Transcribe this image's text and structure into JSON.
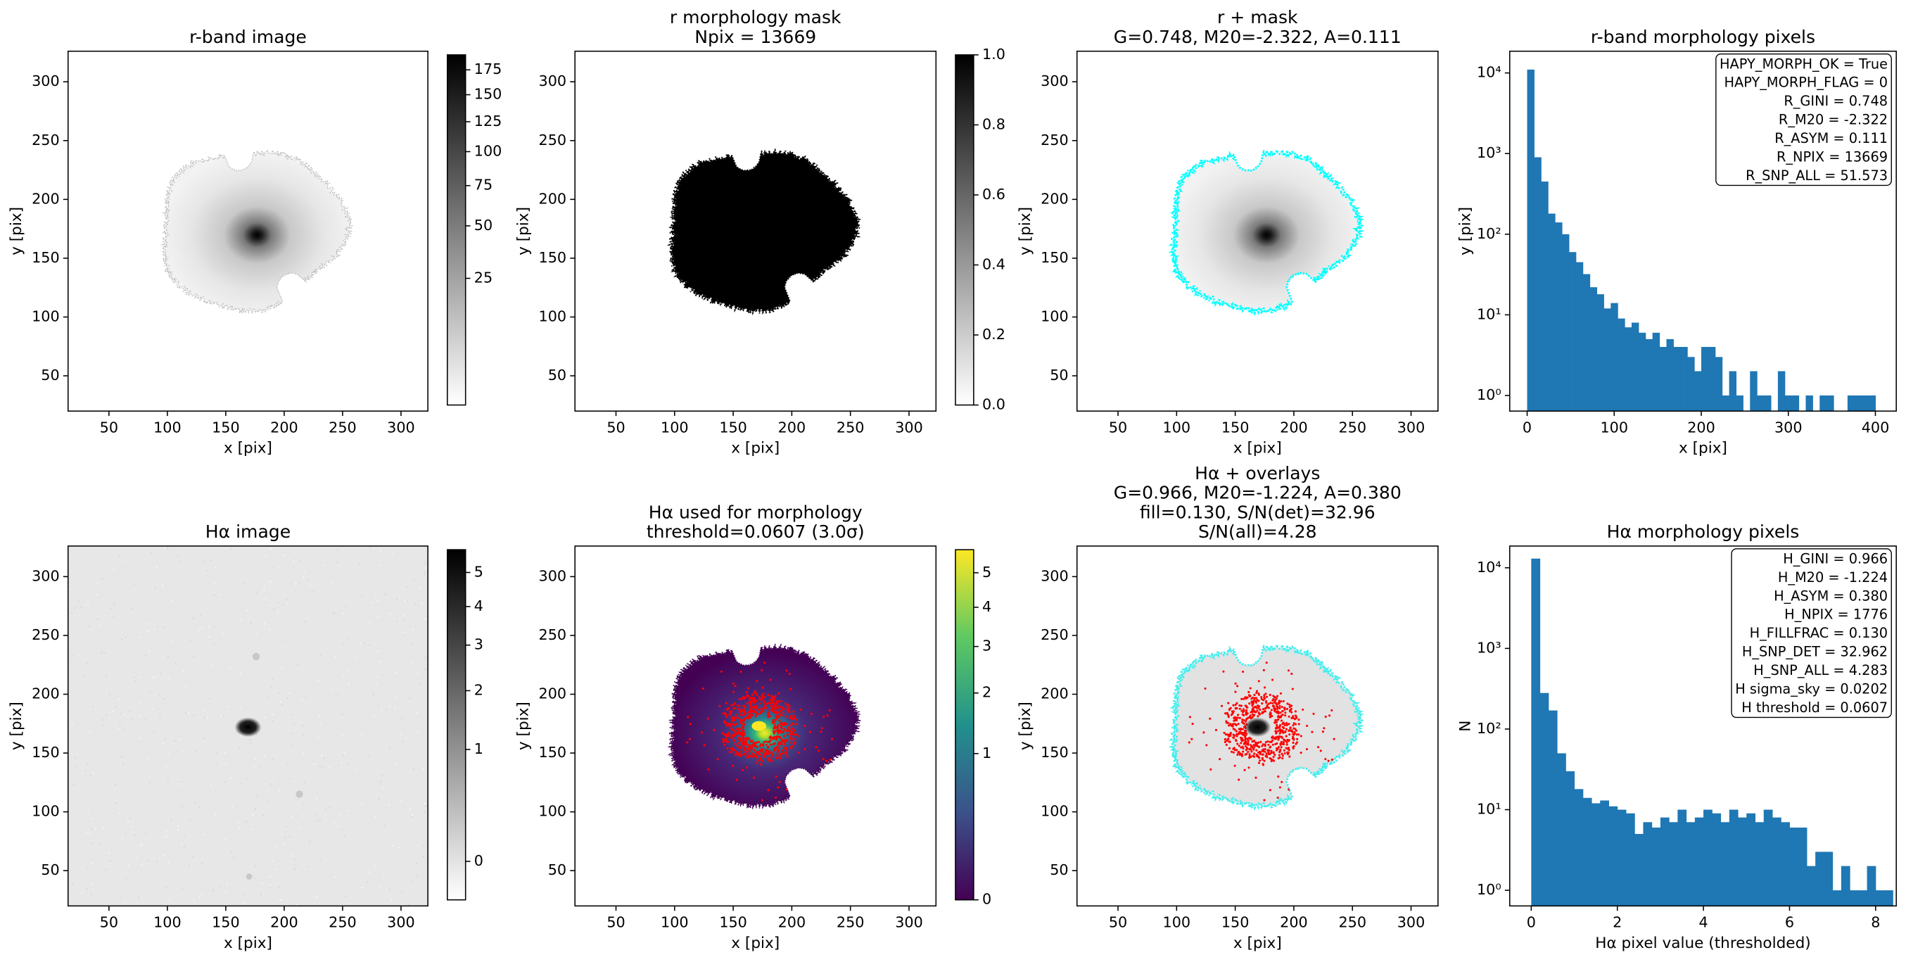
{
  "chart_data": [
    {
      "type": "image",
      "title": [
        "r-band image"
      ],
      "xlabel": "x [pix]",
      "ylabel": "y [pix]",
      "xlim": [
        15,
        323
      ],
      "ylim": [
        20,
        326
      ],
      "xticks": [
        50,
        100,
        150,
        200,
        250,
        300
      ],
      "yticks": [
        50,
        100,
        150,
        200,
        250,
        300
      ],
      "cmap": "gray_r",
      "colorbar": {
        "clim": [
          0,
          191
        ],
        "scale": "sqrt",
        "ticks": [
          25,
          50,
          75,
          100,
          125,
          150,
          175
        ]
      }
    },
    {
      "type": "image",
      "title": [
        "r morphology mask",
        "Npix = 13669"
      ],
      "xlabel": "x [pix]",
      "ylabel": "y [pix]",
      "xlim": [
        15,
        323
      ],
      "ylim": [
        20,
        326
      ],
      "xticks": [
        50,
        100,
        150,
        200,
        250,
        300
      ],
      "yticks": [
        50,
        100,
        150,
        200,
        250,
        300
      ],
      "cmap": "gray_r",
      "colorbar": {
        "clim": [
          0,
          1
        ],
        "scale": "linear",
        "ticks": [
          {
            "value": 0,
            "label": "0.0"
          },
          0.2,
          0.4,
          0.6,
          0.8,
          {
            "value": 1,
            "label": "1.0"
          }
        ]
      }
    },
    {
      "type": "image",
      "title": [
        "r + mask",
        "G=0.748, M20=-2.322, A=0.111"
      ],
      "xlabel": "x [pix]",
      "ylabel": "y [pix]",
      "xlim": [
        15,
        323
      ],
      "ylim": [
        20,
        326
      ],
      "xticks": [
        50,
        100,
        150,
        200,
        250,
        300
      ],
      "yticks": [
        50,
        100,
        150,
        200,
        250,
        300
      ],
      "cmap": "gray_r"
    },
    {
      "type": "histogram",
      "title": [
        "r-band morphology pixels"
      ],
      "xlabel": "x [pix]",
      "ylabel": "y [pix]",
      "bins": [
        0,
        8,
        16,
        24,
        32,
        40,
        48,
        56,
        64,
        72,
        80,
        88,
        96,
        104,
        112,
        120,
        128,
        136,
        144,
        152,
        160,
        168,
        176,
        184,
        192,
        200,
        208,
        216,
        224,
        232,
        240,
        248,
        256,
        264,
        272,
        280,
        288,
        296,
        304,
        312,
        320,
        328,
        336,
        344,
        352,
        360,
        368,
        376,
        384,
        392,
        400
      ],
      "values": [
        11000,
        900,
        450,
        180,
        140,
        100,
        60,
        45,
        32,
        22,
        18,
        12,
        14,
        9,
        7,
        8,
        6,
        5,
        6,
        4,
        5,
        4,
        4,
        3,
        2,
        4,
        4,
        3,
        1,
        2,
        1,
        0,
        2,
        1,
        1,
        0,
        2,
        1,
        1,
        0,
        1,
        0,
        1,
        1,
        0,
        0,
        1,
        1,
        1,
        1
      ],
      "color": "#1f77b4",
      "yscale": "log",
      "xlim": [
        -20,
        424
      ],
      "ylim": [
        0.64,
        18600
      ],
      "xticks": [
        0,
        100,
        200,
        300,
        400
      ],
      "yticks": [
        {
          "value": 1,
          "label": "10⁰"
        },
        {
          "value": 10,
          "label": "10¹"
        },
        {
          "value": 100,
          "label": "10²"
        },
        {
          "value": 1000,
          "label": "10³"
        },
        {
          "value": 10000,
          "label": "10⁴"
        }
      ],
      "annotation": [
        "HAPY_MORPH_OK = True",
        "HAPY_MORPH_FLAG = 0",
        "R_GINI = 0.748",
        "R_M20 = -2.322",
        "R_ASYM = 0.111",
        "R_NPIX = 13669",
        "R_SNP_ALL = 51.573"
      ]
    },
    {
      "type": "image",
      "title": [
        "Hα image"
      ],
      "xlabel": "x [pix]",
      "ylabel": "y [pix]",
      "xlim": [
        15,
        323
      ],
      "ylim": [
        20,
        326
      ],
      "xticks": [
        50,
        100,
        150,
        200,
        250,
        300
      ],
      "yticks": [
        50,
        100,
        150,
        200,
        250,
        300
      ],
      "cmap": "gray_r",
      "colorbar": {
        "clim": [
          -0.07,
          5.73
        ],
        "scale": "sqrt",
        "ticks": [
          0,
          1,
          2,
          3,
          4,
          5
        ]
      }
    },
    {
      "type": "image",
      "title": [
        "Hα used for morphology",
        "threshold=0.0607 (3.0σ)"
      ],
      "xlabel": "x [pix]",
      "ylabel": "y [pix]",
      "xlim": [
        15,
        323
      ],
      "ylim": [
        20,
        326
      ],
      "xticks": [
        50,
        100,
        150,
        200,
        250,
        300
      ],
      "yticks": [
        50,
        100,
        150,
        200,
        250,
        300
      ],
      "cmap": "viridis",
      "colorbar": {
        "clim": [
          0,
          5.73
        ],
        "scale": "sqrt",
        "ticks": [
          0,
          1,
          2,
          3,
          4,
          5
        ]
      }
    },
    {
      "type": "image",
      "title": [
        "Hα + overlays",
        "G=0.966, M20=-1.224, A=0.380",
        "fill=0.130, S/N(det)=32.96",
        "S/N(all)=4.28"
      ],
      "xlabel": "x [pix]",
      "ylabel": "y [pix]",
      "xlim": [
        15,
        323
      ],
      "ylim": [
        20,
        326
      ],
      "xticks": [
        50,
        100,
        150,
        200,
        250,
        300
      ],
      "yticks": [
        50,
        100,
        150,
        200,
        250,
        300
      ],
      "cmap": "gray_r"
    },
    {
      "type": "histogram",
      "title": [
        "Hα morphology pixels"
      ],
      "xlabel": "Hα pixel value (thresholded)",
      "ylabel": "N",
      "bins": [
        0,
        0.2,
        0.4,
        0.6,
        0.8,
        1,
        1.2,
        1.4,
        1.6,
        1.8,
        2,
        2.2,
        2.4,
        2.6,
        2.8,
        3,
        3.2,
        3.4,
        3.6,
        3.8,
        4,
        4.2,
        4.4,
        4.6,
        4.8,
        5,
        5.2,
        5.4,
        5.6,
        5.8,
        6,
        6.2,
        6.4,
        6.6,
        6.8,
        7,
        7.2,
        7.4,
        7.6,
        7.8,
        8,
        8.2,
        8.4
      ],
      "values": [
        13000,
        280,
        170,
        50,
        30,
        18,
        14,
        12,
        13,
        11,
        10,
        9,
        5,
        7,
        6,
        8,
        7,
        10,
        7,
        8,
        10,
        9,
        7,
        10,
        8,
        9,
        7,
        10,
        8,
        7,
        6,
        6,
        2,
        3,
        3,
        1,
        2,
        1,
        1,
        2,
        1,
        1
      ],
      "color": "#1f77b4",
      "yscale": "log",
      "xlim": [
        -0.5,
        8.48
      ],
      "ylim": [
        0.64,
        18600
      ],
      "xticks": [
        0,
        2,
        4,
        6,
        8
      ],
      "yticks": [
        {
          "value": 1,
          "label": "10⁰"
        },
        {
          "value": 10,
          "label": "10¹"
        },
        {
          "value": 100,
          "label": "10²"
        },
        {
          "value": 1000,
          "label": "10³"
        },
        {
          "value": 10000,
          "label": "10⁴"
        }
      ],
      "annotation": [
        "H_GINI = 0.966",
        "H_M20 = -1.224",
        "H_ASYM = 0.380",
        "H_NPIX = 1776",
        "H_FILLFRAC = 0.130",
        "H_SNP_DET = 32.962",
        "H_SNP_ALL = 4.283",
        "H sigma_sky = 0.0202",
        "H threshold = 0.0607"
      ]
    }
  ]
}
